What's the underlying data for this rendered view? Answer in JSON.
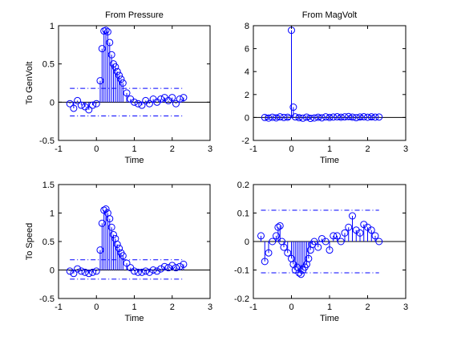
{
  "chart_data": [
    {
      "type": "stem",
      "title": "From Pressure",
      "xlabel": "Time",
      "ylabel": "To GenVolt",
      "xlim": [
        -1,
        3
      ],
      "ylim": [
        -0.5,
        1
      ],
      "xticks": [
        "-1",
        "0",
        "1",
        "2",
        "3"
      ],
      "yticks": [
        "-0.5",
        "0",
        "0.5",
        "1"
      ],
      "x": [
        -0.7,
        -0.6,
        -0.5,
        -0.4,
        -0.3,
        -0.2,
        -0.1,
        0.0,
        0.1,
        0.15,
        0.2,
        0.25,
        0.3,
        0.35,
        0.4,
        0.45,
        0.5,
        0.55,
        0.6,
        0.65,
        0.7,
        0.8,
        0.9,
        1.0,
        1.1,
        1.2,
        1.3,
        1.4,
        1.5,
        1.6,
        1.7,
        1.8,
        1.9,
        2.0,
        2.1,
        2.2,
        2.3
      ],
      "y": [
        -0.02,
        -0.08,
        0.02,
        -0.04,
        -0.06,
        -0.1,
        -0.04,
        -0.02,
        0.28,
        0.7,
        0.93,
        0.94,
        0.92,
        0.78,
        0.62,
        0.5,
        0.46,
        0.4,
        0.35,
        0.3,
        0.25,
        0.12,
        0.04,
        0.0,
        -0.02,
        -0.04,
        0.02,
        -0.02,
        0.04,
        0.0,
        0.04,
        0.06,
        0.02,
        0.06,
        -0.02,
        0.04,
        0.06
      ],
      "confidence_band": [
        0.18,
        -0.18
      ]
    },
    {
      "type": "stem",
      "title": "From MagVolt",
      "xlabel": "Time",
      "ylabel": "",
      "xlim": [
        -1,
        3
      ],
      "ylim": [
        -2,
        8
      ],
      "xticks": [
        "-1",
        "0",
        "1",
        "2",
        "3"
      ],
      "yticks": [
        "-2",
        "0",
        "2",
        "4",
        "6",
        "8"
      ],
      "x": [
        -0.7,
        -0.6,
        -0.5,
        -0.4,
        -0.3,
        -0.2,
        -0.1,
        0.0,
        0.05,
        0.1,
        0.2,
        0.3,
        0.4,
        0.5,
        0.6,
        0.7,
        0.8,
        0.9,
        1.0,
        1.1,
        1.2,
        1.3,
        1.4,
        1.5,
        1.6,
        1.7,
        1.8,
        1.9,
        2.0,
        2.1,
        2.2,
        2.3
      ],
      "y": [
        0.0,
        -0.05,
        0.02,
        -0.03,
        0.05,
        0.0,
        0.02,
        7.6,
        0.9,
        0.05,
        -0.02,
        -0.06,
        0.03,
        -0.08,
        -0.04,
        0.02,
        -0.03,
        0.05,
        0.0,
        0.04,
        0.06,
        0.02,
        0.05,
        0.08,
        0.03,
        -0.02,
        0.04,
        0.06,
        0.02,
        0.05,
        0.03,
        0.04
      ],
      "confidence_band": [
        0.15,
        -0.15
      ]
    },
    {
      "type": "stem",
      "title": "",
      "xlabel": "Time",
      "ylabel": "To Speed",
      "xlim": [
        -1,
        3
      ],
      "ylim": [
        -0.5,
        1.5
      ],
      "xticks": [
        "-1",
        "0",
        "1",
        "2",
        "3"
      ],
      "yticks": [
        "-0.5",
        "0",
        "0.5",
        "1",
        "1.5"
      ],
      "x": [
        -0.7,
        -0.6,
        -0.5,
        -0.4,
        -0.3,
        -0.2,
        -0.1,
        0.0,
        0.1,
        0.15,
        0.2,
        0.25,
        0.3,
        0.35,
        0.4,
        0.45,
        0.5,
        0.55,
        0.6,
        0.65,
        0.7,
        0.8,
        0.9,
        1.0,
        1.1,
        1.2,
        1.3,
        1.4,
        1.5,
        1.6,
        1.7,
        1.8,
        1.9,
        2.0,
        2.1,
        2.2,
        2.3
      ],
      "y": [
        -0.02,
        -0.06,
        0.02,
        -0.02,
        -0.04,
        -0.06,
        -0.04,
        -0.02,
        0.35,
        0.82,
        1.05,
        1.07,
        1.0,
        0.9,
        0.75,
        0.62,
        0.55,
        0.45,
        0.38,
        0.3,
        0.25,
        0.12,
        0.04,
        -0.02,
        -0.04,
        -0.04,
        -0.02,
        -0.04,
        0.0,
        -0.02,
        0.02,
        0.06,
        0.04,
        0.08,
        0.04,
        0.06,
        0.1
      ],
      "confidence_band": [
        0.18,
        -0.16
      ]
    },
    {
      "type": "stem",
      "title": "",
      "xlabel": "Time",
      "ylabel": "",
      "xlim": [
        -1,
        3
      ],
      "ylim": [
        -0.2,
        0.2
      ],
      "xticks": [
        "-1",
        "0",
        "1",
        "2",
        "3"
      ],
      "yticks": [
        "-0.2",
        "-0.1",
        "0",
        "0.1",
        "0.2"
      ],
      "x": [
        -0.8,
        -0.7,
        -0.6,
        -0.5,
        -0.4,
        -0.35,
        -0.3,
        -0.25,
        -0.2,
        -0.1,
        0.0,
        0.05,
        0.1,
        0.15,
        0.2,
        0.25,
        0.3,
        0.35,
        0.4,
        0.45,
        0.5,
        0.55,
        0.6,
        0.7,
        0.8,
        0.9,
        1.0,
        1.1,
        1.2,
        1.3,
        1.4,
        1.5,
        1.6,
        1.7,
        1.8,
        1.9,
        2.0,
        2.1,
        2.2,
        2.3
      ],
      "y": [
        0.02,
        -0.07,
        -0.04,
        0.0,
        0.02,
        0.05,
        0.055,
        0.0,
        -0.02,
        -0.04,
        -0.06,
        -0.08,
        -0.1,
        -0.09,
        -0.11,
        -0.115,
        -0.1,
        -0.09,
        -0.08,
        -0.06,
        -0.03,
        -0.01,
        0.0,
        -0.02,
        0.01,
        0.0,
        -0.03,
        0.02,
        0.02,
        0.0,
        0.03,
        0.05,
        0.09,
        0.04,
        0.03,
        0.06,
        0.05,
        0.04,
        0.02,
        0.0
      ],
      "confidence_band": [
        0.11,
        -0.11
      ]
    }
  ]
}
